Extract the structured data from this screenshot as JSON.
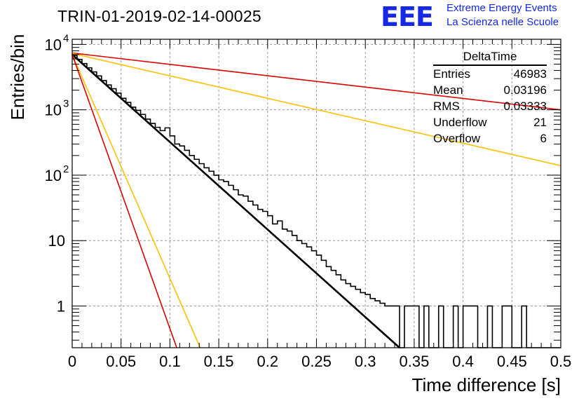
{
  "header": {
    "title": "TRIN-01-2019-02-14-00025",
    "logo_text": "EEE",
    "logo_line1": "Extreme Energy Events",
    "logo_line2": "La Scienza nelle Scuole"
  },
  "stats_box": {
    "title": "DeltaTime",
    "rows": [
      {
        "label": "Entries",
        "value": "46983"
      },
      {
        "label": "Mean",
        "value": "0.03196"
      },
      {
        "label": "RMS",
        "value": "0.03333"
      },
      {
        "label": "Underflow",
        "value": "21"
      },
      {
        "label": "Overflow",
        "value": "6"
      }
    ]
  },
  "chart_data": {
    "type": "line",
    "xlabel": "Time difference [s]",
    "ylabel": "Entries/bin",
    "xlim": [
      0,
      0.5
    ],
    "ylim": [
      0.23,
      12000
    ],
    "yscale": "log",
    "grid": true,
    "x_ticks": [
      "0",
      "0.05",
      "0.1",
      "0.15",
      "0.2",
      "0.25",
      "0.3",
      "0.35",
      "0.4",
      "0.45",
      "0.5"
    ],
    "y_ticks": [
      {
        "value": 1,
        "label": "1"
      },
      {
        "value": 10,
        "label": "10"
      },
      {
        "value": 100,
        "label": "10",
        "exp": "2"
      },
      {
        "value": 1000,
        "label": "10",
        "exp": "3"
      },
      {
        "value": 10000,
        "label": "10",
        "exp": "4"
      }
    ],
    "histogram": {
      "name": "DeltaTime",
      "color": "#000000",
      "bin_width": 0.005,
      "bins": [
        [
          0.0,
          6800
        ],
        [
          0.005,
          5900
        ],
        [
          0.01,
          5100
        ],
        [
          0.015,
          4400
        ],
        [
          0.02,
          3800
        ],
        [
          0.025,
          3300
        ],
        [
          0.03,
          2800
        ],
        [
          0.035,
          2400
        ],
        [
          0.04,
          2100
        ],
        [
          0.045,
          1800
        ],
        [
          0.05,
          1500
        ],
        [
          0.055,
          1300
        ],
        [
          0.06,
          1100
        ],
        [
          0.065,
          980
        ],
        [
          0.07,
          850
        ],
        [
          0.075,
          720
        ],
        [
          0.08,
          620
        ],
        [
          0.085,
          540
        ],
        [
          0.09,
          480
        ],
        [
          0.095,
          530
        ],
        [
          0.1,
          400
        ],
        [
          0.105,
          300
        ],
        [
          0.11,
          280
        ],
        [
          0.115,
          240
        ],
        [
          0.12,
          200
        ],
        [
          0.125,
          175
        ],
        [
          0.13,
          150
        ],
        [
          0.135,
          130
        ],
        [
          0.14,
          115
        ],
        [
          0.145,
          100
        ],
        [
          0.15,
          85
        ],
        [
          0.155,
          80
        ],
        [
          0.16,
          70
        ],
        [
          0.165,
          60
        ],
        [
          0.17,
          50
        ],
        [
          0.175,
          48
        ],
        [
          0.18,
          40
        ],
        [
          0.185,
          35
        ],
        [
          0.19,
          30
        ],
        [
          0.195,
          28
        ],
        [
          0.2,
          24
        ],
        [
          0.205,
          18
        ],
        [
          0.21,
          20
        ],
        [
          0.215,
          15
        ],
        [
          0.22,
          14
        ],
        [
          0.225,
          12
        ],
        [
          0.23,
          10
        ],
        [
          0.235,
          9
        ],
        [
          0.24,
          8
        ],
        [
          0.245,
          7
        ],
        [
          0.25,
          6
        ],
        [
          0.255,
          5
        ],
        [
          0.26,
          4
        ],
        [
          0.265,
          3.5
        ],
        [
          0.27,
          3
        ],
        [
          0.275,
          2.5
        ],
        [
          0.28,
          2.2
        ],
        [
          0.285,
          2
        ],
        [
          0.29,
          1.8
        ],
        [
          0.295,
          1.6
        ],
        [
          0.3,
          1.5
        ],
        [
          0.305,
          1.3
        ],
        [
          0.31,
          1.2
        ],
        [
          0.315,
          1.1
        ],
        [
          0.32,
          1
        ],
        [
          0.325,
          1
        ],
        [
          0.33,
          1
        ],
        [
          0.335,
          0
        ],
        [
          0.34,
          1
        ],
        [
          0.345,
          1
        ],
        [
          0.35,
          1
        ],
        [
          0.355,
          0
        ],
        [
          0.36,
          1
        ],
        [
          0.365,
          0
        ],
        [
          0.37,
          0
        ],
        [
          0.375,
          1
        ],
        [
          0.38,
          0
        ],
        [
          0.385,
          0
        ],
        [
          0.39,
          1
        ],
        [
          0.395,
          0
        ],
        [
          0.4,
          1
        ],
        [
          0.405,
          1
        ],
        [
          0.41,
          1
        ],
        [
          0.415,
          0
        ],
        [
          0.42,
          0
        ],
        [
          0.425,
          1
        ],
        [
          0.43,
          0
        ],
        [
          0.435,
          0
        ],
        [
          0.44,
          1
        ],
        [
          0.445,
          1
        ],
        [
          0.45,
          0
        ],
        [
          0.455,
          0
        ],
        [
          0.46,
          1
        ],
        [
          0.465,
          0
        ],
        [
          0.47,
          0
        ],
        [
          0.475,
          0
        ],
        [
          0.48,
          0
        ],
        [
          0.485,
          0
        ],
        [
          0.49,
          0
        ],
        [
          0.495,
          0
        ]
      ]
    },
    "fit_lines": [
      {
        "name": "fit",
        "color": "#000000",
        "width": 2.6,
        "x0": 0,
        "y0": 7000,
        "x1": 0.335,
        "y1": 0.23
      },
      {
        "name": "upper-red",
        "color": "#dd0000",
        "width": 1.6,
        "x0": 0,
        "y0": 7400,
        "x1": 0.5,
        "y1": 1000
      },
      {
        "name": "upper-orange",
        "color": "#ffc000",
        "width": 1.6,
        "x0": 0,
        "y0": 7300,
        "x1": 0.5,
        "y1": 140
      },
      {
        "name": "lower-orange",
        "color": "#ffc000",
        "width": 1.6,
        "x0": 0,
        "y0": 7000,
        "x1": 0.131,
        "y1": 0.23
      },
      {
        "name": "lower-red",
        "color": "#dd0000",
        "width": 1.6,
        "x0": 0,
        "y0": 7000,
        "x1": 0.107,
        "y1": 0.23
      }
    ]
  }
}
